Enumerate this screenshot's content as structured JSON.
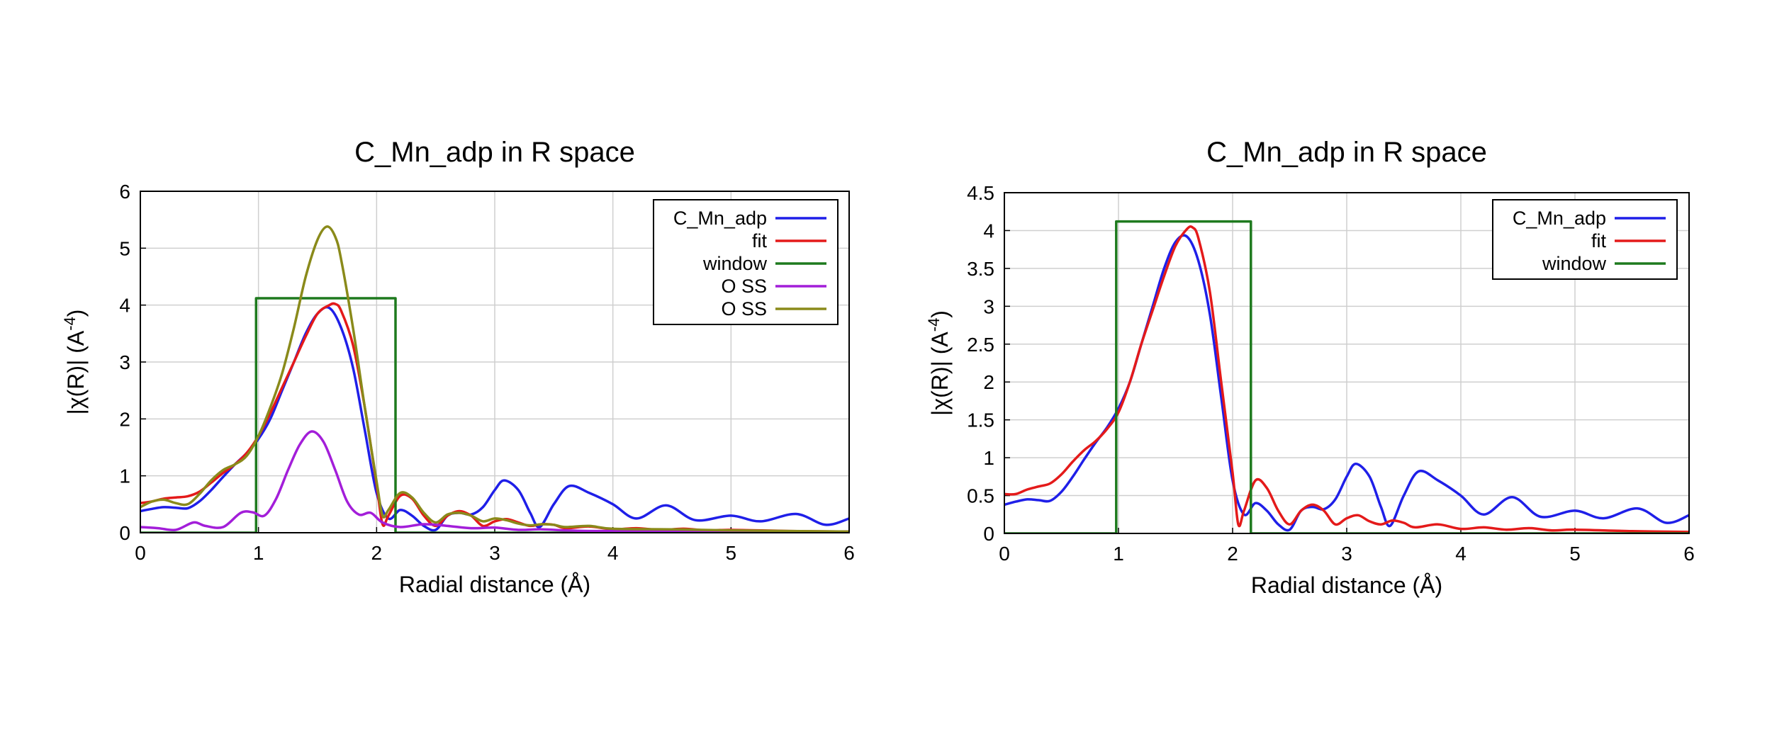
{
  "chart_data": [
    {
      "type": "line",
      "title": "C_Mn_adp in R space",
      "xlabel": "Radial distance    (Å)",
      "ylabel": "|χ(R)|    (A",
      "ylabel_sup": "-4",
      "ylabel_close": ")",
      "xlim": [
        0,
        6
      ],
      "ylim": [
        0,
        6
      ],
      "xticks": [
        "0",
        "1",
        "2",
        "3",
        "4",
        "5",
        "6"
      ],
      "yticks": [
        "0",
        "1",
        "2",
        "3",
        "4",
        "5",
        "6"
      ],
      "grid": true,
      "legend": "top-right",
      "series": [
        {
          "name": "C_Mn_adp",
          "color": "#1f1fe8",
          "x": [
            0,
            0.1,
            0.2,
            0.3,
            0.4,
            0.5,
            0.6,
            0.7,
            0.8,
            0.9,
            1.0,
            1.1,
            1.2,
            1.3,
            1.4,
            1.5,
            1.6,
            1.7,
            1.8,
            1.9,
            2.0,
            2.1,
            2.2,
            2.3,
            2.4,
            2.5,
            2.6,
            2.7,
            2.8,
            2.9,
            3.0,
            3.08,
            3.2,
            3.3,
            3.38,
            3.5,
            3.63,
            3.8,
            4.0,
            4.2,
            4.45,
            4.7,
            5.0,
            5.25,
            5.55,
            5.8,
            6.0
          ],
          "y": [
            0.38,
            0.42,
            0.45,
            0.44,
            0.43,
            0.55,
            0.75,
            0.98,
            1.2,
            1.4,
            1.65,
            2.0,
            2.5,
            3.0,
            3.5,
            3.85,
            3.95,
            3.6,
            2.9,
            1.8,
            0.7,
            0.25,
            0.4,
            0.3,
            0.12,
            0.05,
            0.3,
            0.35,
            0.32,
            0.45,
            0.75,
            0.92,
            0.75,
            0.35,
            0.1,
            0.5,
            0.82,
            0.7,
            0.5,
            0.25,
            0.48,
            0.22,
            0.3,
            0.2,
            0.33,
            0.14,
            0.25
          ]
        },
        {
          "name": "fit",
          "color": "#e41a1a",
          "x": [
            0,
            0.1,
            0.2,
            0.3,
            0.4,
            0.5,
            0.6,
            0.7,
            0.8,
            0.9,
            1.0,
            1.1,
            1.2,
            1.3,
            1.4,
            1.5,
            1.6,
            1.65,
            1.7,
            1.8,
            1.9,
            2.0,
            2.05,
            2.1,
            2.2,
            2.3,
            2.4,
            2.5,
            2.6,
            2.7,
            2.8,
            2.9,
            3.0,
            3.1,
            3.2,
            3.3,
            3.4,
            3.5,
            3.6,
            3.8,
            4.0,
            4.2,
            4.4,
            4.6,
            4.8,
            5.0,
            5.5,
            6.0
          ],
          "y": [
            0.52,
            0.55,
            0.6,
            0.62,
            0.64,
            0.72,
            0.88,
            1.05,
            1.2,
            1.4,
            1.7,
            2.1,
            2.55,
            3.0,
            3.45,
            3.85,
            4.0,
            4.02,
            3.9,
            3.3,
            2.2,
            0.85,
            0.15,
            0.3,
            0.65,
            0.6,
            0.3,
            0.12,
            0.3,
            0.38,
            0.3,
            0.12,
            0.2,
            0.24,
            0.18,
            0.12,
            0.15,
            0.14,
            0.08,
            0.11,
            0.06,
            0.08,
            0.05,
            0.07,
            0.04,
            0.05,
            0.03,
            0.02
          ]
        },
        {
          "name": "window",
          "color": "#1e7a1e",
          "step": true,
          "x": [
            0,
            0.98,
            0.98,
            2.16,
            2.16,
            6.0
          ],
          "y": [
            0,
            0,
            4.12,
            4.12,
            0,
            0
          ]
        },
        {
          "name": "O SS",
          "color": "#a31ed9",
          "x": [
            0,
            0.15,
            0.3,
            0.45,
            0.55,
            0.7,
            0.85,
            0.95,
            1.05,
            1.15,
            1.25,
            1.35,
            1.45,
            1.55,
            1.65,
            1.75,
            1.85,
            1.95,
            2.05,
            2.2,
            2.4,
            2.6,
            2.8,
            3.0,
            3.2,
            3.4,
            3.6,
            3.8,
            4.0,
            4.5,
            5.0,
            5.5,
            6.0
          ],
          "y": [
            0.1,
            0.08,
            0.05,
            0.18,
            0.12,
            0.1,
            0.35,
            0.36,
            0.3,
            0.6,
            1.1,
            1.55,
            1.78,
            1.6,
            1.1,
            0.55,
            0.32,
            0.35,
            0.18,
            0.1,
            0.15,
            0.12,
            0.08,
            0.09,
            0.05,
            0.06,
            0.04,
            0.03,
            0.03,
            0.02,
            0.02,
            0.01,
            0.01
          ]
        },
        {
          "name": "O SS",
          "color": "#8a8a1a",
          "x": [
            0,
            0.1,
            0.2,
            0.3,
            0.4,
            0.5,
            0.6,
            0.7,
            0.8,
            0.9,
            1.0,
            1.1,
            1.2,
            1.3,
            1.4,
            1.5,
            1.58,
            1.65,
            1.7,
            1.8,
            1.9,
            2.0,
            2.05,
            2.1,
            2.2,
            2.3,
            2.4,
            2.5,
            2.6,
            2.7,
            2.8,
            2.9,
            3.0,
            3.1,
            3.2,
            3.3,
            3.4,
            3.5,
            3.6,
            3.8,
            4.0,
            4.5,
            5.0,
            5.5,
            6.0
          ],
          "y": [
            0.45,
            0.55,
            0.58,
            0.52,
            0.5,
            0.68,
            0.92,
            1.1,
            1.2,
            1.35,
            1.7,
            2.2,
            2.8,
            3.6,
            4.5,
            5.15,
            5.38,
            5.2,
            4.8,
            3.6,
            2.2,
            0.9,
            0.3,
            0.4,
            0.7,
            0.62,
            0.35,
            0.18,
            0.32,
            0.35,
            0.3,
            0.2,
            0.25,
            0.22,
            0.16,
            0.13,
            0.15,
            0.14,
            0.1,
            0.12,
            0.07,
            0.06,
            0.04,
            0.03,
            0.02
          ]
        }
      ]
    },
    {
      "type": "line",
      "title": "C_Mn_adp in R space",
      "xlabel": "Radial distance    (Å)",
      "ylabel": "|χ(R)|    (A",
      "ylabel_sup": "-4",
      "ylabel_close": ")",
      "xlim": [
        0,
        6
      ],
      "ylim": [
        0,
        4.5
      ],
      "xticks": [
        "0",
        "1",
        "2",
        "3",
        "4",
        "5",
        "6"
      ],
      "yticks": [
        "0",
        "0.5",
        "1",
        "1.5",
        "2",
        "2.5",
        "3",
        "3.5",
        "4",
        "4.5"
      ],
      "grid": true,
      "legend": "top-right",
      "series": [
        {
          "name": "C_Mn_adp",
          "color": "#1f1fe8",
          "x": [
            0,
            0.1,
            0.2,
            0.3,
            0.4,
            0.5,
            0.6,
            0.7,
            0.8,
            0.9,
            1.0,
            1.1,
            1.2,
            1.3,
            1.4,
            1.5,
            1.6,
            1.7,
            1.8,
            1.9,
            2.0,
            2.1,
            2.2,
            2.3,
            2.4,
            2.5,
            2.6,
            2.7,
            2.8,
            2.9,
            3.0,
            3.08,
            3.2,
            3.3,
            3.38,
            3.5,
            3.63,
            3.8,
            4.0,
            4.2,
            4.45,
            4.7,
            5.0,
            5.25,
            5.55,
            5.8,
            6.0
          ],
          "y": [
            0.38,
            0.42,
            0.45,
            0.44,
            0.43,
            0.55,
            0.75,
            0.98,
            1.2,
            1.4,
            1.65,
            2.0,
            2.5,
            3.0,
            3.5,
            3.85,
            3.92,
            3.6,
            2.9,
            1.8,
            0.7,
            0.25,
            0.4,
            0.3,
            0.12,
            0.05,
            0.3,
            0.35,
            0.32,
            0.45,
            0.75,
            0.92,
            0.75,
            0.35,
            0.1,
            0.5,
            0.82,
            0.7,
            0.5,
            0.25,
            0.48,
            0.22,
            0.3,
            0.2,
            0.33,
            0.14,
            0.24
          ]
        },
        {
          "name": "fit",
          "color": "#e41a1a",
          "x": [
            0,
            0.1,
            0.2,
            0.3,
            0.4,
            0.5,
            0.6,
            0.7,
            0.8,
            0.9,
            1.0,
            1.1,
            1.2,
            1.3,
            1.4,
            1.5,
            1.6,
            1.65,
            1.7,
            1.8,
            1.9,
            2.0,
            2.05,
            2.1,
            2.2,
            2.3,
            2.4,
            2.5,
            2.6,
            2.7,
            2.8,
            2.9,
            3.0,
            3.1,
            3.2,
            3.3,
            3.4,
            3.5,
            3.6,
            3.8,
            4.0,
            4.2,
            4.4,
            4.6,
            4.8,
            5.0,
            5.5,
            6.0
          ],
          "y": [
            0.52,
            0.52,
            0.58,
            0.62,
            0.66,
            0.78,
            0.95,
            1.1,
            1.22,
            1.38,
            1.6,
            2.0,
            2.5,
            2.95,
            3.4,
            3.8,
            4.02,
            4.04,
            3.9,
            3.2,
            2.0,
            0.8,
            0.12,
            0.3,
            0.7,
            0.6,
            0.3,
            0.12,
            0.3,
            0.38,
            0.3,
            0.12,
            0.2,
            0.24,
            0.16,
            0.12,
            0.17,
            0.14,
            0.08,
            0.12,
            0.06,
            0.08,
            0.05,
            0.07,
            0.04,
            0.05,
            0.03,
            0.02
          ]
        },
        {
          "name": "window",
          "color": "#1e7a1e",
          "step": true,
          "x": [
            0,
            0.98,
            0.98,
            2.16,
            2.16,
            6.0
          ],
          "y": [
            0,
            0,
            4.12,
            4.12,
            0,
            0
          ]
        }
      ]
    }
  ]
}
